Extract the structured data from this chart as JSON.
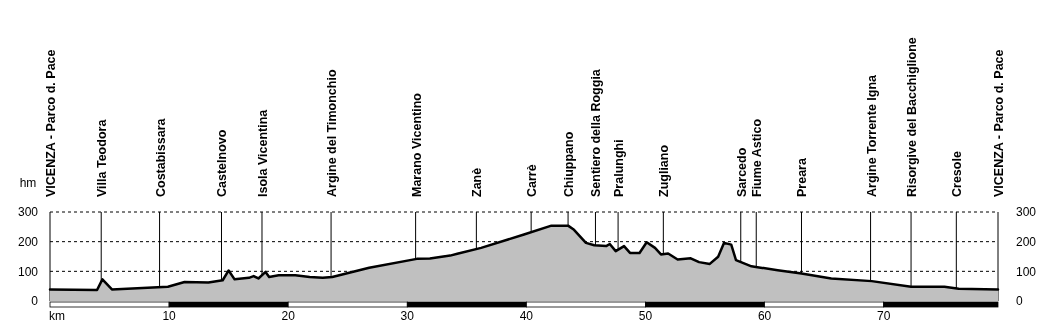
{
  "chart_data": {
    "type": "area",
    "xlabel": "km",
    "ylabel": "hm",
    "x": [
      0,
      3.95,
      4.4,
      4.8,
      5.2,
      8.2,
      9.9,
      11.3,
      13.3,
      14.5,
      15.0,
      15.5,
      16.7,
      17.1,
      17.5,
      18.1,
      18.4,
      19.2,
      20.6,
      21.8,
      22.9,
      23.7,
      26.8,
      30.8,
      31.9,
      33.6,
      34.2,
      36.2,
      39.8,
      42.1,
      43.5,
      44.0,
      45.0,
      45.7,
      46.7,
      47.0,
      47.5,
      48.2,
      48.7,
      49.5,
      50.1,
      50.8,
      51.3,
      51.9,
      52.7,
      53.8,
      54.5,
      55.4,
      56.1,
      56.6,
      57.2,
      57.6,
      58.9,
      59.4,
      61.1,
      63.1,
      65.6,
      69.0,
      72.3,
      75.1,
      76.3,
      79.6
    ],
    "series": [
      {
        "color": "#c0c0c0",
        "values": [
          39,
          37,
          73,
          56,
          39,
          45,
          48,
          64,
          62,
          70,
          103,
          73,
          78,
          84,
          76,
          98,
          81,
          87,
          87,
          81,
          78,
          81,
          112,
          142,
          143,
          153,
          159,
          179,
          224,
          254,
          254,
          240,
          196,
          188,
          185,
          192,
          168,
          185,
          162,
          162,
          198,
          179,
          157,
          160,
          140,
          144,
          131,
          125,
          149,
          196,
          190,
          138,
          117,
          114,
          104,
          93,
          76,
          67,
          48,
          48,
          41,
          39
        ]
      }
    ],
    "xlim": [
      0,
      79.6
    ],
    "xticks": [
      10,
      20,
      30,
      40,
      50,
      60,
      70
    ],
    "ylim": [
      0,
      300
    ],
    "yticks": [
      0,
      100,
      200,
      300
    ],
    "y2lim": [
      0,
      300
    ],
    "y2ticks": [
      0,
      100,
      200,
      300
    ],
    "grid": "y",
    "ref_lines": [
      {
        "axis": "x",
        "value": 0,
        "label": "VICENZA - Parco d. Pace"
      },
      {
        "axis": "x",
        "value": 4.3,
        "label": "Villa Teodora"
      },
      {
        "axis": "x",
        "value": 9.2,
        "label": "Costabissara"
      },
      {
        "axis": "x",
        "value": 14.4,
        "label": "Castelnovo"
      },
      {
        "axis": "x",
        "value": 17.8,
        "label": "Isola Vicentina"
      },
      {
        "axis": "x",
        "value": 23.6,
        "label": "Argine del Timonchio"
      },
      {
        "axis": "x",
        "value": 30.7,
        "label": "Marano Vicentino"
      },
      {
        "axis": "x",
        "value": 35.8,
        "label": "Zanè"
      },
      {
        "axis": "x",
        "value": 40.4,
        "label": "Carrè"
      },
      {
        "axis": "x",
        "value": 43.5,
        "label": "Chiuppano"
      },
      {
        "axis": "x",
        "value": 45.8,
        "label": "Sentiero della Roggia"
      },
      {
        "axis": "x",
        "value": 47.7,
        "label": "Pralunghi"
      },
      {
        "axis": "x",
        "value": 51.5,
        "label": "Zugliano"
      },
      {
        "axis": "x",
        "value": 58.0,
        "label": "Sarcedo"
      },
      {
        "axis": "x",
        "value": 59.3,
        "label": "Fiume Astico"
      },
      {
        "axis": "x",
        "value": 63.1,
        "label": "Preara"
      },
      {
        "axis": "x",
        "value": 68.9,
        "label": "Argine Torrente Igna"
      },
      {
        "axis": "x",
        "value": 72.3,
        "label": "Risorgive del Bacchiglione"
      },
      {
        "axis": "x",
        "value": 76.1,
        "label": "Cresole"
      },
      {
        "axis": "x",
        "value": 79.6,
        "label": "VICENZA - Parco d. Pace"
      }
    ]
  }
}
